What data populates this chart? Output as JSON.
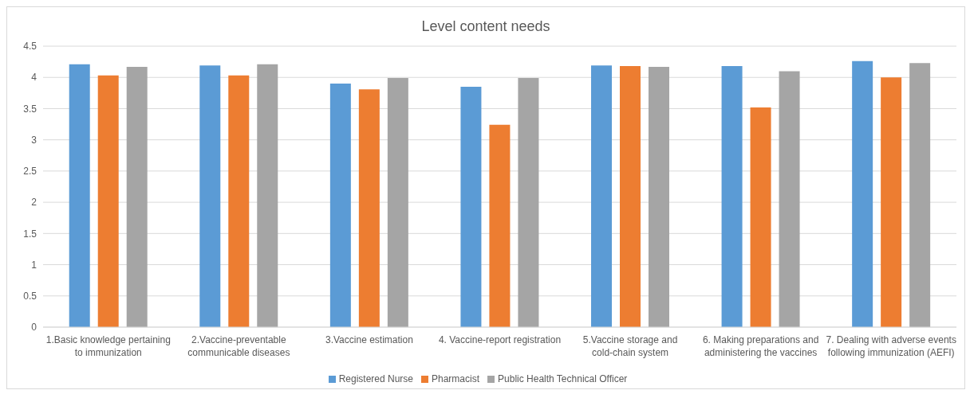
{
  "chart_data": {
    "type": "bar",
    "title": "Level content needs",
    "categories": [
      "1.Basic knowledge pertaining to immunization",
      "2.Vaccine-preventable communicable diseases",
      "3.Vaccine estimation",
      "4. Vaccine-report registration",
      "5.Vaccine storage and cold-chain system",
      "6. Making preparations and administering the vaccines",
      "7. Dealing with adverse events following immunization (AEFI)"
    ],
    "series": [
      {
        "name": "Registered Nurse",
        "color": "#5b9bd5",
        "values": [
          4.21,
          4.19,
          3.9,
          3.85,
          4.19,
          4.18,
          4.26
        ]
      },
      {
        "name": "Pharmacist",
        "color": "#ed7d31",
        "values": [
          4.03,
          4.03,
          3.81,
          3.24,
          4.18,
          3.52,
          4.0
        ]
      },
      {
        "name": "Public Health Technical Officer",
        "color": "#a5a5a5",
        "values": [
          4.17,
          4.21,
          3.99,
          3.99,
          4.17,
          4.1,
          4.23
        ]
      }
    ],
    "ylim": [
      0,
      4.5
    ],
    "yticks": [
      0,
      0.5,
      1,
      1.5,
      2,
      2.5,
      3,
      3.5,
      4,
      4.5
    ],
    "grid": "y",
    "legend": "bottom"
  }
}
